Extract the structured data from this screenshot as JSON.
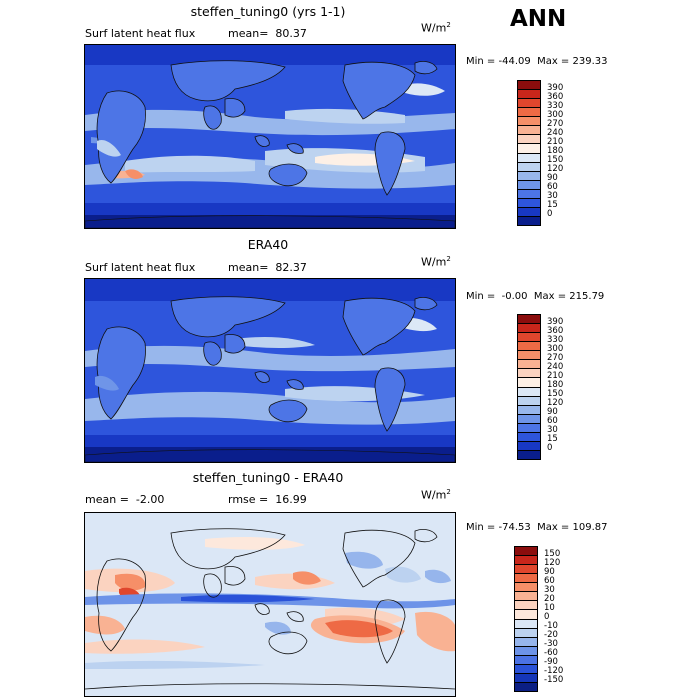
{
  "season": "ANN",
  "panels": [
    {
      "id": "model",
      "title": "steffen_tuning0 (yrs 1-1)",
      "variable": "Surf latent heat flux",
      "stat1": "mean=  80.37",
      "stat2": "",
      "units": "W/m",
      "units_sup": "2",
      "minmax": "Min = -44.09  Max = 239.33",
      "labels": [
        "390",
        "360",
        "330",
        "300",
        "270",
        "240",
        "210",
        "180",
        "150",
        "120",
        "90",
        "60",
        "30",
        "15",
        "0"
      ]
    },
    {
      "id": "obs",
      "title": "ERA40",
      "variable": "Surf latent heat flux",
      "stat1": "mean=  82.37",
      "stat2": "",
      "units": "W/m",
      "units_sup": "2",
      "minmax": "Min =  -0.00  Max = 215.79",
      "labels": [
        "390",
        "360",
        "330",
        "300",
        "270",
        "240",
        "210",
        "180",
        "150",
        "120",
        "90",
        "60",
        "30",
        "15",
        "0"
      ]
    },
    {
      "id": "diff",
      "title": "steffen_tuning0 - ERA40",
      "variable": "",
      "stat1": "mean =  -2.00",
      "stat2": "rmse =  16.99",
      "units": "W/m",
      "units_sup": "2",
      "minmax": "Min = -74.53  Max = 109.87",
      "labels": [
        "150",
        "120",
        "90",
        "60",
        "30",
        "20",
        "10",
        "0",
        "-10",
        "-20",
        "-30",
        "-60",
        "-90",
        "-120",
        "-150"
      ]
    }
  ],
  "colors": {
    "abs_scale": [
      "#8b0d0d",
      "#c8261b",
      "#e0462d",
      "#ee6a45",
      "#f68f68",
      "#f9b293",
      "#fbd3c0",
      "#fdf0e6",
      "#dce8f6",
      "#bdd3f0",
      "#98b7ec",
      "#6f95e8",
      "#4d75e6",
      "#2e55dc",
      "#1838c4",
      "#0a1e8c"
    ],
    "diff_scale": [
      "#8b0d0d",
      "#c8261b",
      "#e0462d",
      "#ee6a45",
      "#f68f68",
      "#f9b293",
      "#fbd3c0",
      "#fde8dc",
      "#dbe7f6",
      "#bcd2f0",
      "#96b5ec",
      "#6d93e8",
      "#4b72e4",
      "#2a52d8",
      "#1536b8",
      "#0b1f84"
    ]
  }
}
